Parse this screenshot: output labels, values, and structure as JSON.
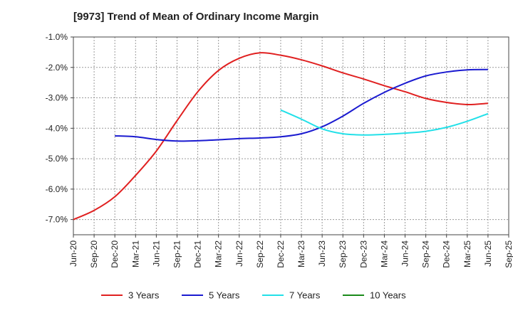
{
  "chart_data": {
    "type": "line",
    "title": "[9973]  Trend of Mean of Ordinary Income Margin",
    "xlabel": "",
    "ylabel": "",
    "ylim": [
      -7.5,
      -1.0
    ],
    "y_ticks": [
      -1.0,
      -2.0,
      -3.0,
      -4.0,
      -5.0,
      -6.0,
      -7.0
    ],
    "y_tick_labels": [
      "-1.0%",
      "-2.0%",
      "-3.0%",
      "-4.0%",
      "-5.0%",
      "-6.0%",
      "-7.0%"
    ],
    "categories": [
      "Jun-20",
      "Sep-20",
      "Dec-20",
      "Mar-21",
      "Jun-21",
      "Sep-21",
      "Dec-21",
      "Mar-22",
      "Jun-22",
      "Sep-22",
      "Dec-22",
      "Mar-23",
      "Jun-23",
      "Sep-23",
      "Dec-23",
      "Mar-24",
      "Jun-24",
      "Sep-24",
      "Dec-24",
      "Mar-25",
      "Jun-25",
      "Sep-25"
    ],
    "grid": true,
    "legend_position": "bottom",
    "series": [
      {
        "name": "3 Years",
        "color": "#e02020",
        "values": [
          -7.0,
          -6.7,
          -6.25,
          -5.55,
          -4.75,
          -3.75,
          -2.8,
          -2.1,
          -1.7,
          -1.52,
          -1.6,
          -1.75,
          -1.95,
          -2.18,
          -2.38,
          -2.6,
          -2.8,
          -3.02,
          -3.15,
          -3.22,
          -3.18,
          null
        ]
      },
      {
        "name": "5 Years",
        "color": "#1a1ad0",
        "values": [
          null,
          null,
          -4.25,
          -4.28,
          -4.37,
          -4.42,
          -4.41,
          -4.38,
          -4.34,
          -4.32,
          -4.28,
          -4.18,
          -3.95,
          -3.6,
          -3.18,
          -2.82,
          -2.52,
          -2.28,
          -2.15,
          -2.08,
          -2.07,
          null
        ]
      },
      {
        "name": "7 Years",
        "color": "#22e0e8",
        "values": [
          null,
          null,
          null,
          null,
          null,
          null,
          null,
          null,
          null,
          null,
          -3.4,
          -3.7,
          -4.02,
          -4.18,
          -4.22,
          -4.2,
          -4.16,
          -4.1,
          -3.97,
          -3.77,
          -3.52,
          null
        ]
      },
      {
        "name": "10 Years",
        "color": "#1a8a1a",
        "values": [
          null,
          null,
          null,
          null,
          null,
          null,
          null,
          null,
          null,
          null,
          null,
          null,
          null,
          null,
          null,
          null,
          null,
          null,
          null,
          null,
          null,
          null
        ]
      }
    ]
  }
}
